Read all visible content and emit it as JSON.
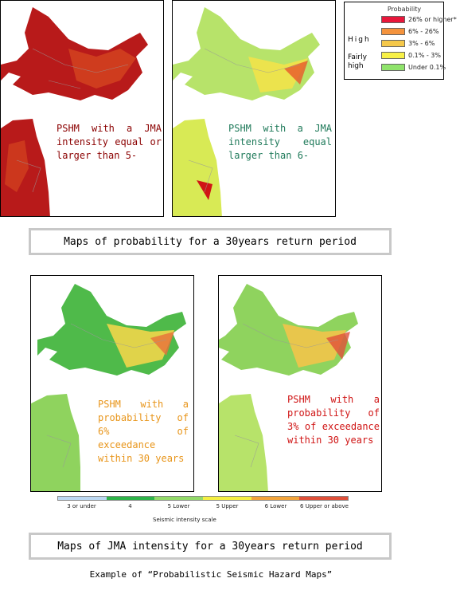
{
  "legend": {
    "title": "Probability",
    "high_label": "High",
    "fairly_high_label": "Fairly high",
    "items": [
      {
        "label": "26% or higher*",
        "color": "#e8173b"
      },
      {
        "label": "6% - 26%",
        "color": "#f4933d"
      },
      {
        "label": "3% - 6%",
        "color": "#f5c84a"
      },
      {
        "label": "0.1% - 3%",
        "color": "#f7f047"
      },
      {
        "label": "Under 0.1%",
        "color": "#8fe36b"
      }
    ]
  },
  "maps": [
    {
      "label": "PSHM with a JMA intensity equal or larger than 5-",
      "label_color": "#8b0000",
      "land_color": "#b81a1a",
      "accent_color": "#d4451f",
      "style": "dark"
    },
    {
      "label": "PSHM with a JMA intensity equal larger than 6-",
      "label_color": "#1f7a5a",
      "land_color": "#b7e36a",
      "accent_color": "#f2e24a",
      "style": "light"
    },
    {
      "label": "PSHM with a probability of 6% of exceedance within 30 years",
      "label_color": "#e8951a",
      "land_color": "#7ccd5a",
      "accent_color": "#f0d64a",
      "style": "mid"
    },
    {
      "label": "PSHM with a probability of 3% of exceedance within 30 years",
      "label_color": "#d01515",
      "land_color": "#8fd35e",
      "accent_color": "#f2b84a",
      "style": "mid2"
    }
  ],
  "captions": {
    "probability": "Maps of probability for a 30years return period",
    "intensity": "Maps of JMA intensity for a 30years return period",
    "bottom": "Example of “Probabilistic Seismic Hazard Maps”"
  },
  "scale": {
    "title": "Seismic intensity scale",
    "items": [
      {
        "label": "3 or under",
        "color": "#bcd8f2"
      },
      {
        "label": "4",
        "color": "#2fb44a"
      },
      {
        "label": "5 Lower",
        "color": "#93da6a"
      },
      {
        "label": "5 Upper",
        "color": "#f4ef42"
      },
      {
        "label": "6 Lower",
        "color": "#f2a43c"
      },
      {
        "label": "6 Upper or above",
        "color": "#e0503a"
      }
    ]
  }
}
